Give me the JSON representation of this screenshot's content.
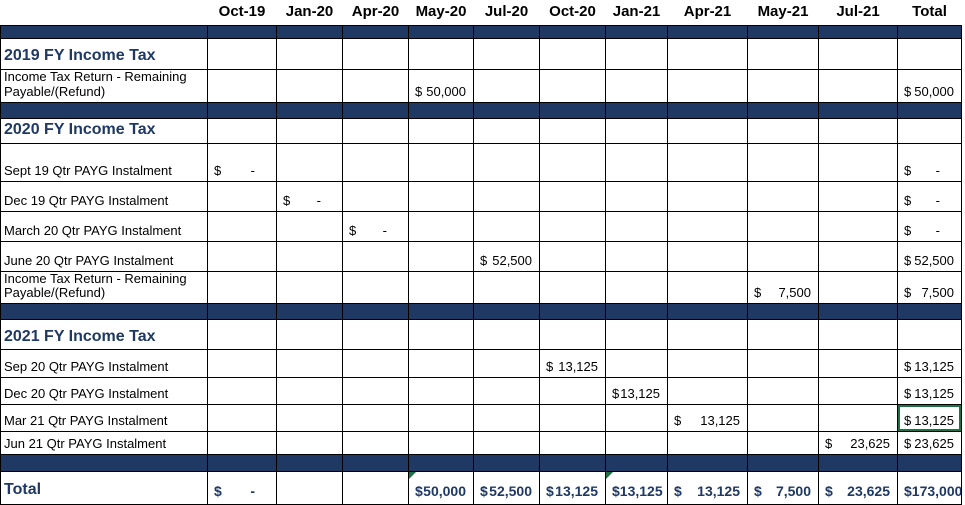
{
  "colors": {
    "band_navy": "#1f3864",
    "flag_green": "#1e7145",
    "grid_black": "#000000"
  },
  "sheet": {
    "currency_symbol": "$",
    "columns": [
      {
        "key": "label",
        "header": ""
      },
      {
        "key": "oct19",
        "header": "Oct-19"
      },
      {
        "key": "jan20",
        "header": "Jan-20"
      },
      {
        "key": "apr20",
        "header": "Apr-20"
      },
      {
        "key": "may20",
        "header": "May-20"
      },
      {
        "key": "jul20",
        "header": "Jul-20"
      },
      {
        "key": "oct20",
        "header": "Oct-20"
      },
      {
        "key": "jan21",
        "header": "Jan-21"
      },
      {
        "key": "apr21",
        "header": "Apr-21"
      },
      {
        "key": "may21",
        "header": "May-21"
      },
      {
        "key": "jul21",
        "header": "Jul-21"
      },
      {
        "key": "total",
        "header": "Total"
      }
    ],
    "rows": [
      {
        "type": "band"
      },
      {
        "type": "section",
        "label": "2019 FY Income Tax"
      },
      {
        "type": "data",
        "label": "Income Tax Return - Remaining Payable/(Refund)",
        "cells": {
          "may20": "50,000",
          "total": "50,000"
        }
      },
      {
        "type": "band"
      },
      {
        "type": "section",
        "label": "2020 FY Income Tax"
      },
      {
        "type": "data",
        "label": "Sept 19 Qtr PAYG Instalment",
        "cells": {
          "oct19": "-",
          "total": "-"
        }
      },
      {
        "type": "data",
        "label": "Dec 19 Qtr PAYG Instalment",
        "cells": {
          "jan20": "-",
          "total": "-"
        }
      },
      {
        "type": "data",
        "label": "March 20 Qtr PAYG Instalment",
        "cells": {
          "apr20": "-",
          "total": "-"
        }
      },
      {
        "type": "data",
        "label": "June 20 Qtr PAYG Instalment",
        "cells": {
          "jul20": "52,500",
          "total": "52,500"
        }
      },
      {
        "type": "data",
        "label": "Income Tax Return - Remaining Payable/(Refund)",
        "cells": {
          "may21": "7,500",
          "total": "7,500"
        }
      },
      {
        "type": "band"
      },
      {
        "type": "section",
        "label": "2021 FY Income Tax"
      },
      {
        "type": "data",
        "label": "Sep 20 Qtr PAYG Instalment",
        "cells": {
          "oct20": "13,125",
          "total": "13,125"
        }
      },
      {
        "type": "data",
        "label": "Dec 20 Qtr PAYG Instalment",
        "cells": {
          "jan21": "13,125",
          "total": "13,125"
        }
      },
      {
        "type": "data",
        "label": "Mar 21 Qtr PAYG Instalment",
        "cells": {
          "apr21": "13,125",
          "total": "13,125"
        },
        "selected": "total"
      },
      {
        "type": "data",
        "label": "Jun 21 Qtr PAYG Instalment",
        "cells": {
          "jul21": "23,625",
          "total": "23,625"
        }
      },
      {
        "type": "band"
      },
      {
        "type": "total",
        "label": "Total",
        "cells": {
          "oct19": "-",
          "may20": "50,000",
          "jul20": "52,500",
          "oct20": "13,125",
          "jan21": "13,125",
          "apr21": "13,125",
          "may21": "7,500",
          "jul21": "23,625",
          "total": "173,000"
        },
        "flags": [
          "may20",
          "jan21"
        ]
      }
    ]
  }
}
